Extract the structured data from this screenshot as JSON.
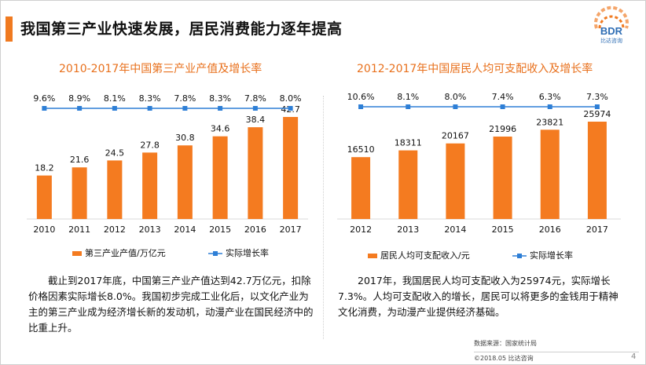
{
  "header": {
    "title": "我国第三产业快速发展，居民消费能力逐年提高"
  },
  "logo": {
    "text": "BDR",
    "subtitle": "比达咨询",
    "icon": "bdr-logo-icon"
  },
  "colors": {
    "accent": "#f07a20",
    "bar": "#f47b20",
    "line": "#2e7fd6",
    "title": "#e8701c"
  },
  "chart_data": [
    {
      "type": "bar",
      "title": "2010-2017年中国第三产业产值及增长率",
      "categories": [
        "2010",
        "2011",
        "2012",
        "2013",
        "2014",
        "2015",
        "2016",
        "2017"
      ],
      "series": [
        {
          "name": "第三产业产值/万亿元",
          "type": "bar",
          "values": [
            18.2,
            21.6,
            24.5,
            27.8,
            30.8,
            34.6,
            38.4,
            42.7
          ],
          "labels": [
            "18.2",
            "21.6",
            "24.5",
            "27.8",
            "30.8",
            "34.6",
            "38.4",
            "42.7"
          ]
        },
        {
          "name": "实际增长率",
          "type": "line",
          "values": [
            9.6,
            8.9,
            8.1,
            8.3,
            7.8,
            8.3,
            7.8,
            8.0
          ],
          "labels": [
            "9.6%",
            "8.9%",
            "8.1%",
            "8.3%",
            "7.8%",
            "8.3%",
            "7.8%",
            "8.0%"
          ]
        }
      ],
      "ylim": [
        0,
        42.7
      ],
      "legend": "bottom"
    },
    {
      "type": "bar",
      "title": "2012-2017年中国居民人均可支配收入及增长率",
      "categories": [
        "2012",
        "2013",
        "2014",
        "2015",
        "2016",
        "2017"
      ],
      "series": [
        {
          "name": "居民人均可支配收入/元",
          "type": "bar",
          "values": [
            16510,
            18311,
            20167,
            21996,
            23821,
            25974
          ],
          "labels": [
            "16510",
            "18311",
            "20167",
            "21996",
            "23821",
            "25974"
          ]
        },
        {
          "name": "实际增长率",
          "type": "line",
          "values": [
            10.6,
            8.1,
            8.0,
            7.4,
            6.3,
            7.3
          ],
          "labels": [
            "10.6%",
            "8.1%",
            "8.0%",
            "7.4%",
            "6.3%",
            "7.3%"
          ]
        }
      ],
      "ylim": [
        0,
        25974
      ],
      "legend": "bottom"
    }
  ],
  "paragraphs": {
    "left": "截止到2017年底，中国第三产业产值达到42.7万亿元，扣除价格因素实际增长8.0%。我国初步完成工业化后，以文化产业为主的第三产业成为经济增长新的发动机，动漫产业在国民经济中的比重上升。",
    "right": "2017年，我国居民人均可支配收入为25974元，实际增长7.3%。人均可支配收入的增长，居民可以将更多的金钱用于精神文化消费，为动漫产业提供经济基础。"
  },
  "footer": {
    "source": "数据来源：国家统计局",
    "copyright": "©2018.05  比达咨询",
    "page": "4"
  }
}
